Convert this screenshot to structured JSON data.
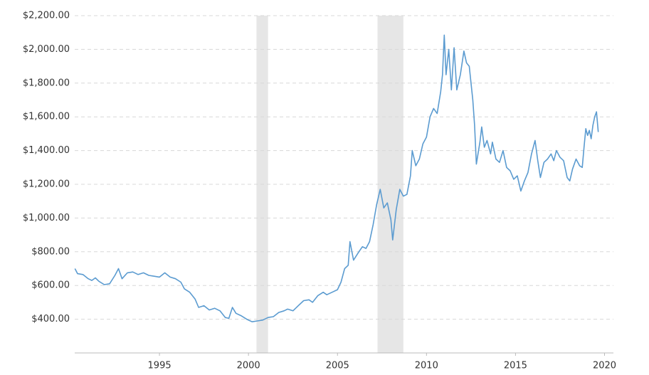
{
  "chart_data": {
    "type": "line",
    "x": [
      1990.25,
      1990.4,
      1990.7,
      1991.0,
      1991.2,
      1991.4,
      1991.6,
      1991.9,
      1992.2,
      1992.5,
      1992.7,
      1992.9,
      1993.2,
      1993.5,
      1993.8,
      1994.1,
      1994.4,
      1994.7,
      1995.0,
      1995.3,
      1995.6,
      1995.9,
      1996.2,
      1996.4,
      1996.7,
      1997.0,
      1997.2,
      1997.5,
      1997.8,
      1998.1,
      1998.4,
      1998.7,
      1998.9,
      1999.1,
      1999.3,
      1999.6,
      1999.9,
      2000.2,
      2000.5,
      2000.8,
      2001.1,
      2001.4,
      2001.7,
      2002.0,
      2002.2,
      2002.5,
      2002.8,
      2003.1,
      2003.4,
      2003.6,
      2003.9,
      2004.2,
      2004.4,
      2004.7,
      2005.0,
      2005.2,
      2005.4,
      2005.6,
      2005.7,
      2005.9,
      2006.2,
      2006.4,
      2006.6,
      2006.8,
      2007.0,
      2007.2,
      2007.4,
      2007.6,
      2007.8,
      2008.0,
      2008.1,
      2008.3,
      2008.5,
      2008.7,
      2008.9,
      2009.1,
      2009.2,
      2009.4,
      2009.6,
      2009.8,
      2010.0,
      2010.2,
      2010.4,
      2010.6,
      2010.8,
      2010.9,
      2011.0,
      2011.1,
      2011.25,
      2011.4,
      2011.55,
      2011.7,
      2011.9,
      2012.1,
      2012.25,
      2012.4,
      2012.6,
      2012.7,
      2012.8,
      2013.0,
      2013.1,
      2013.25,
      2013.4,
      2013.6,
      2013.7,
      2013.9,
      2014.1,
      2014.3,
      2014.5,
      2014.7,
      2014.9,
      2015.1,
      2015.3,
      2015.5,
      2015.7,
      2015.9,
      2016.1,
      2016.25,
      2016.4,
      2016.6,
      2016.8,
      2017.0,
      2017.15,
      2017.3,
      2017.5,
      2017.7,
      2017.9,
      2018.05,
      2018.2,
      2018.4,
      2018.6,
      2018.75,
      2018.85,
      2018.95,
      2019.05,
      2019.15,
      2019.25,
      2019.35,
      2019.45,
      2019.55,
      2019.65
    ],
    "series": [
      {
        "color": "#5b9bd0",
        "values": [
          700,
          670,
          665,
          640,
          630,
          645,
          625,
          605,
          610,
          660,
          700,
          640,
          675,
          680,
          665,
          675,
          660,
          655,
          650,
          675,
          650,
          640,
          620,
          580,
          560,
          520,
          470,
          480,
          455,
          465,
          450,
          410,
          405,
          470,
          435,
          420,
          400,
          385,
          390,
          395,
          410,
          415,
          440,
          450,
          460,
          450,
          480,
          510,
          515,
          500,
          540,
          560,
          545,
          560,
          575,
          620,
          700,
          720,
          860,
          750,
          800,
          830,
          820,
          860,
          960,
          1080,
          1170,
          1060,
          1090,
          990,
          870,
          1050,
          1170,
          1130,
          1140,
          1250,
          1400,
          1310,
          1350,
          1440,
          1480,
          1600,
          1650,
          1620,
          1750,
          1850,
          2085,
          1850,
          2000,
          1760,
          2010,
          1760,
          1850,
          1990,
          1920,
          1900,
          1700,
          1550,
          1320,
          1450,
          1540,
          1420,
          1460,
          1380,
          1450,
          1350,
          1330,
          1400,
          1300,
          1280,
          1230,
          1250,
          1160,
          1220,
          1270,
          1380,
          1460,
          1340,
          1240,
          1330,
          1350,
          1380,
          1340,
          1400,
          1360,
          1340,
          1240,
          1220,
          1290,
          1350,
          1310,
          1300,
          1420,
          1530,
          1490,
          1520,
          1470,
          1550,
          1600,
          1630,
          1510
        ]
      }
    ],
    "xlim": [
      1990.24,
      2020.5
    ],
    "xticks": [
      1995,
      2000,
      2005,
      2010,
      2015,
      2020
    ],
    "ylim": [
      200,
      2200
    ],
    "yticks": [
      {
        "value": 400,
        "label": "$400.00"
      },
      {
        "value": 600,
        "label": "$600.00"
      },
      {
        "value": 800,
        "label": "$800.00"
      },
      {
        "value": 1000,
        "label": "$1,000.00"
      },
      {
        "value": 1200,
        "label": "$1,200.00"
      },
      {
        "value": 1400,
        "label": "$1,400.00"
      },
      {
        "value": 1600,
        "label": "$1,600.00"
      },
      {
        "value": 1800,
        "label": "$1,800.00"
      },
      {
        "value": 2000,
        "label": "$2,000.00"
      },
      {
        "value": 2200,
        "label": "$2,200.00"
      }
    ],
    "grid": true,
    "bands": [
      [
        2000.45,
        2001.1
      ],
      [
        2007.25,
        2008.7
      ]
    ],
    "band_color": "#e6e6e6"
  }
}
